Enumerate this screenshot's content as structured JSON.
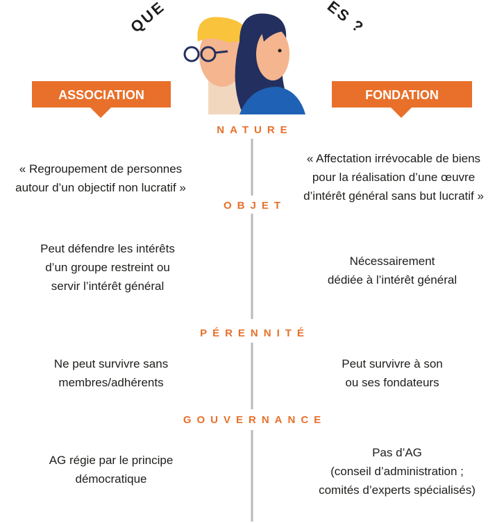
{
  "header": {
    "title_fragments": [
      "QUE",
      "ES ?"
    ]
  },
  "columns": [
    "ASSOCIATION",
    "FONDATION"
  ],
  "rows": [
    {
      "label": "NATURE",
      "left": [
        "« Regroupement de personnes",
        "autour d’un objectif non lucratif »"
      ],
      "right": [
        "« Affectation irrévocable de biens",
        "pour la réalisation d’une œuvre",
        "d’intérêt général sans but lucratif »"
      ]
    },
    {
      "label": "OBJET",
      "left": [
        "Peut défendre les intérêts",
        "d’un groupe restreint ou",
        "servir l’intérêt général"
      ],
      "right": [
        "Nécessairement",
        "dédiée à l’intérêt général"
      ]
    },
    {
      "label": "PÉRENNITÉ",
      "left": [
        "Ne peut survivre sans",
        "membres/adhérents"
      ],
      "right": [
        "Peut survivre à son",
        "ou ses fondateurs"
      ]
    },
    {
      "label": "GOUVERNANCE",
      "left": [
        "AG régie par le principe",
        "démocratique"
      ],
      "right": [
        "Pas d’AG",
        "(conseil d’administration ;",
        "comités d’experts spécialisés)"
      ]
    }
  ]
}
